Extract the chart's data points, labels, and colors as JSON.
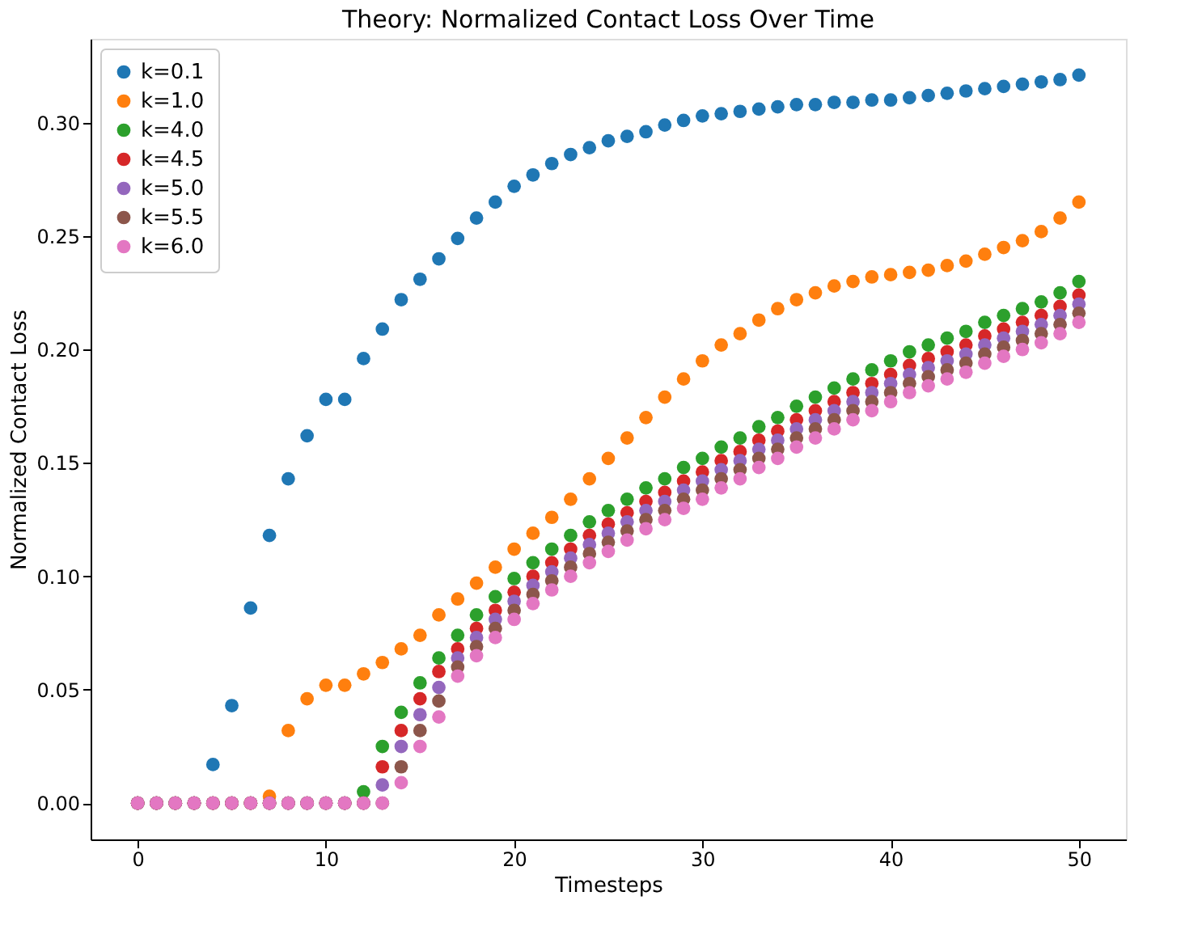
{
  "chart_data": {
    "type": "scatter",
    "title": "Theory: Normalized Contact Loss Over Time",
    "xlabel": "Timesteps",
    "ylabel": "Normalized Contact Loss",
    "x": [
      0,
      1,
      2,
      3,
      4,
      5,
      6,
      7,
      8,
      9,
      10,
      11,
      12,
      13,
      14,
      15,
      16,
      17,
      18,
      19,
      20,
      21,
      22,
      23,
      24,
      25,
      26,
      27,
      28,
      29,
      30,
      31,
      32,
      33,
      34,
      35,
      36,
      37,
      38,
      39,
      40,
      41,
      42,
      43,
      44,
      45,
      46,
      47,
      48,
      49,
      50
    ],
    "xlim": [
      -2.5,
      52.5
    ],
    "xticks": [
      0,
      10,
      20,
      30,
      40,
      50
    ],
    "ylim": [
      -0.016,
      0.337
    ],
    "yticks": [
      {
        "value": 0,
        "label": "0.00"
      },
      0.05,
      {
        "value": 0.1,
        "label": "0.10"
      },
      0.15,
      {
        "value": 0.2,
        "label": "0.20"
      },
      0.25,
      {
        "value": 0.3,
        "label": "0.30"
      }
    ],
    "grid": false,
    "legend": "top left",
    "marker": "circle",
    "series": [
      {
        "name": "k=0.1",
        "color": "#1f77b4",
        "values": [
          0,
          0,
          0,
          0,
          0.017,
          0.043,
          0.086,
          0.118,
          0.143,
          0.162,
          0.178,
          0.178,
          0.196,
          0.209,
          0.222,
          0.231,
          0.24,
          0.249,
          0.258,
          0.265,
          0.272,
          0.277,
          0.282,
          0.286,
          0.289,
          0.292,
          0.294,
          0.296,
          0.299,
          0.301,
          0.303,
          0.304,
          0.305,
          0.306,
          0.307,
          0.308,
          0.308,
          0.309,
          0.309,
          0.31,
          0.31,
          0.311,
          0.312,
          0.313,
          0.314,
          0.315,
          0.316,
          0.317,
          0.318,
          0.319,
          0.321
        ]
      },
      {
        "name": "k=1.0",
        "color": "#ff7f0e",
        "values": [
          0,
          0,
          0,
          0,
          0,
          0,
          0,
          0.003,
          0.032,
          0.046,
          0.052,
          0.052,
          0.057,
          0.062,
          0.068,
          0.074,
          0.083,
          0.09,
          0.097,
          0.104,
          0.112,
          0.119,
          0.126,
          0.134,
          0.143,
          0.152,
          0.161,
          0.17,
          0.179,
          0.187,
          0.195,
          0.202,
          0.207,
          0.213,
          0.218,
          0.222,
          0.225,
          0.228,
          0.23,
          0.232,
          0.233,
          0.234,
          0.235,
          0.237,
          0.239,
          0.242,
          0.245,
          0.248,
          0.252,
          0.258,
          0.265
        ]
      },
      {
        "name": "k=4.0",
        "color": "#2ca02c",
        "values": [
          0,
          0,
          0,
          0,
          0,
          0,
          0,
          0,
          0,
          0,
          0,
          0,
          0.005,
          0.025,
          0.04,
          0.053,
          0.064,
          0.074,
          0.083,
          0.091,
          0.099,
          0.106,
          0.112,
          0.118,
          0.124,
          0.129,
          0.134,
          0.139,
          0.143,
          0.148,
          0.152,
          0.157,
          0.161,
          0.166,
          0.17,
          0.175,
          0.179,
          0.183,
          0.187,
          0.191,
          0.195,
          0.199,
          0.202,
          0.205,
          0.208,
          0.212,
          0.215,
          0.218,
          0.221,
          0.225,
          0.23
        ]
      },
      {
        "name": "k=4.5",
        "color": "#d62728",
        "values": [
          0,
          0,
          0,
          0,
          0,
          0,
          0,
          0,
          0,
          0,
          0,
          0,
          0,
          0.016,
          0.032,
          0.046,
          0.058,
          0.068,
          0.077,
          0.085,
          0.093,
          0.1,
          0.106,
          0.112,
          0.118,
          0.123,
          0.128,
          0.133,
          0.137,
          0.142,
          0.146,
          0.151,
          0.155,
          0.16,
          0.164,
          0.169,
          0.173,
          0.177,
          0.181,
          0.185,
          0.189,
          0.193,
          0.196,
          0.199,
          0.202,
          0.206,
          0.209,
          0.212,
          0.215,
          0.219,
          0.224
        ]
      },
      {
        "name": "k=5.0",
        "color": "#9467bd",
        "values": [
          0,
          0,
          0,
          0,
          0,
          0,
          0,
          0,
          0,
          0,
          0,
          0,
          0,
          0.008,
          0.025,
          0.039,
          0.051,
          0.064,
          0.073,
          0.081,
          0.089,
          0.096,
          0.102,
          0.108,
          0.114,
          0.119,
          0.124,
          0.129,
          0.133,
          0.138,
          0.142,
          0.147,
          0.151,
          0.156,
          0.16,
          0.165,
          0.169,
          0.173,
          0.177,
          0.181,
          0.185,
          0.189,
          0.192,
          0.195,
          0.198,
          0.202,
          0.205,
          0.208,
          0.211,
          0.215,
          0.22
        ]
      },
      {
        "name": "k=5.5",
        "color": "#8c564b",
        "values": [
          0,
          0,
          0,
          0,
          0,
          0,
          0,
          0,
          0,
          0,
          0,
          0,
          0,
          0,
          0.016,
          0.032,
          0.045,
          0.06,
          0.069,
          0.077,
          0.085,
          0.092,
          0.098,
          0.104,
          0.11,
          0.115,
          0.12,
          0.125,
          0.129,
          0.134,
          0.138,
          0.143,
          0.147,
          0.152,
          0.156,
          0.161,
          0.165,
          0.169,
          0.173,
          0.177,
          0.181,
          0.185,
          0.188,
          0.191,
          0.194,
          0.198,
          0.201,
          0.204,
          0.207,
          0.211,
          0.216
        ]
      },
      {
        "name": "k=6.0",
        "color": "#e377c2",
        "values": [
          0,
          0,
          0,
          0,
          0,
          0,
          0,
          0,
          0,
          0,
          0,
          0,
          0,
          0,
          0.009,
          0.025,
          0.038,
          0.056,
          0.065,
          0.073,
          0.081,
          0.088,
          0.094,
          0.1,
          0.106,
          0.111,
          0.116,
          0.121,
          0.125,
          0.13,
          0.134,
          0.139,
          0.143,
          0.148,
          0.152,
          0.157,
          0.161,
          0.165,
          0.169,
          0.173,
          0.177,
          0.181,
          0.184,
          0.187,
          0.19,
          0.194,
          0.197,
          0.2,
          0.203,
          0.207,
          0.212
        ]
      }
    ]
  }
}
